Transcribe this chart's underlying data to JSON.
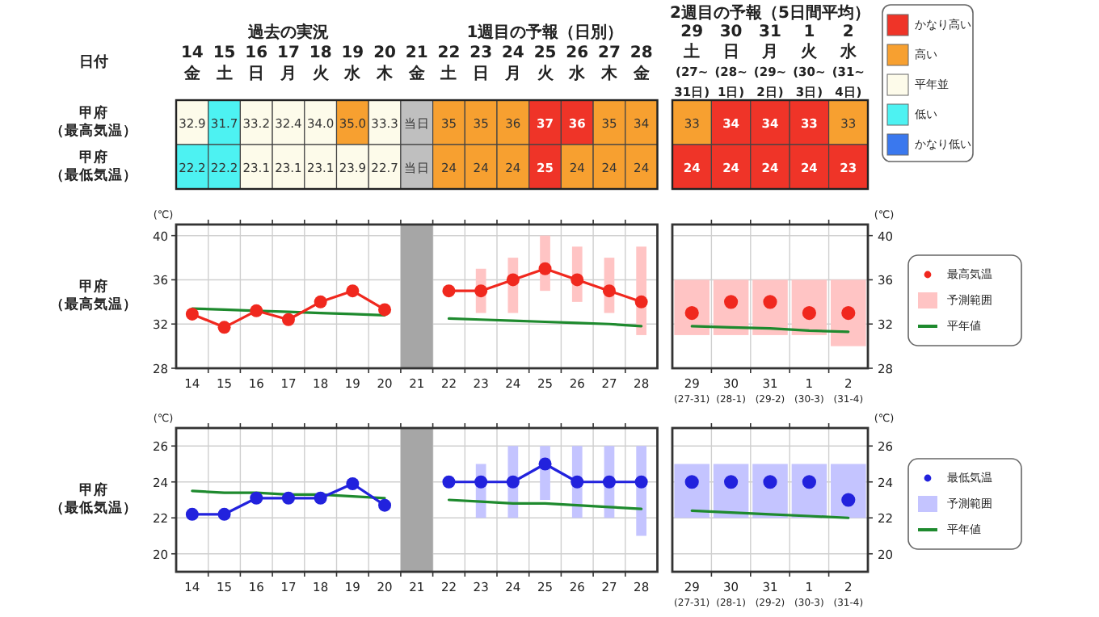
{
  "chart_data": [
    {
      "type": "heatmap",
      "xlabel": "日付",
      "annotations": [
        "過去の実況",
        "1週目の予報（日別）",
        "2週目の予報（5日間平均）"
      ],
      "categories": [
        "14\n金",
        "15\n土",
        "16\n日",
        "17\n月",
        "18\n火",
        "19\n水",
        "20\n木",
        "21\n金",
        "22\n土",
        "23\n日",
        "24\n月",
        "25\n火",
        "26\n水",
        "27\n木",
        "28\n金",
        "29\n土\n(27~\n31日)",
        "30\n日\n(28~\n1日)",
        "31\n月\n(29~\n2日)",
        "1\n火\n(30~\n3日)",
        "2\n水\n(31~\n4日)"
      ],
      "y_categories": [
        "甲府（最高気温）",
        "甲府（最低気温）"
      ],
      "cells": [
        [
          32.9,
          31.7,
          33.2,
          32.4,
          34.0,
          35.0,
          33.3,
          null,
          35,
          35,
          36,
          37,
          36,
          35,
          34,
          33,
          34,
          34,
          33,
          33
        ],
        [
          22.2,
          22.2,
          23.1,
          23.1,
          23.1,
          23.9,
          22.7,
          null,
          24,
          24,
          24,
          25,
          24,
          24,
          24,
          24,
          24,
          24,
          24,
          23
        ]
      ],
      "cell_labels": [
        [
          "32.9",
          "31.7",
          "33.2",
          "32.4",
          "34.0",
          "35.0",
          "33.3",
          "当日",
          "35",
          "35",
          "36",
          "37",
          "36",
          "35",
          "34",
          "33",
          "34",
          "34",
          "33",
          "33"
        ],
        [
          "22.2",
          "22.2",
          "23.1",
          "23.1",
          "23.1",
          "23.9",
          "22.7",
          "当日",
          "24",
          "24",
          "24",
          "25",
          "24",
          "24",
          "24",
          "24",
          "24",
          "24",
          "24",
          "23"
        ]
      ],
      "colors": [
        [
          "#fdfbea",
          "#4df2f2",
          "#fdfbea",
          "#fdfbea",
          "#fdfbea",
          "#f7a030",
          "#fdfbea",
          "#bfbfbf",
          "#f7a030",
          "#f7a030",
          "#f7a030",
          "#ef3428",
          "#ef3428",
          "#f7a030",
          "#f7a030",
          "#f7a030",
          "#ef3428",
          "#ef3428",
          "#ef3428",
          "#f7a030"
        ],
        [
          "#4df2f2",
          "#4df2f2",
          "#fdfbea",
          "#fdfbea",
          "#fdfbea",
          "#fdfbea",
          "#fdfbea",
          "#bfbfbf",
          "#f7a030",
          "#f7a030",
          "#f7a030",
          "#ef3428",
          "#f7a030",
          "#f7a030",
          "#f7a030",
          "#ef3428",
          "#ef3428",
          "#ef3428",
          "#ef3428",
          "#ef3428"
        ]
      ]
    },
    {
      "type": "other",
      "categories": [
        "かなり高い",
        "高い",
        "平年並",
        "低い",
        "かなり低い"
      ],
      "colors": [
        "#ef3428",
        "#f7a030",
        "#fdfbea",
        "#4df2f2",
        "#3a78ee"
      ]
    },
    {
      "type": "line",
      "categories": [
        "14",
        "15",
        "16",
        "17",
        "18",
        "19",
        "20",
        "21",
        "22",
        "23",
        "24",
        "25",
        "26",
        "27",
        "28"
      ],
      "ylabel": "(℃)",
      "annotations": [
        "甲府（最高気温）"
      ],
      "ylim": [
        28,
        41
      ],
      "yticks": [
        28,
        32,
        36,
        40
      ],
      "grid": true,
      "bands": [
        {
          "axis": "x",
          "from": "21",
          "to": "21",
          "color": "#a6a6a6"
        }
      ],
      "series": [
        {
          "type": "bar",
          "color": "#ffc4c4",
          "base": [
            null,
            null,
            null,
            null,
            null,
            null,
            null,
            null,
            null,
            33,
            33,
            35,
            34,
            33,
            31
          ],
          "values": [
            null,
            null,
            null,
            null,
            null,
            null,
            null,
            null,
            null,
            4,
            5,
            5,
            5,
            5,
            8
          ]
        },
        {
          "type": "line",
          "color": "#1e8a2e",
          "values": [
            33.4,
            33.3,
            33.2,
            33.1,
            33.0,
            32.9,
            32.8,
            null,
            32.5,
            32.4,
            32.3,
            32.2,
            32.1,
            32.0,
            31.8
          ]
        },
        {
          "type": "line",
          "color": "#f0281e",
          "marker": "circle",
          "values": [
            32.9,
            31.7,
            33.2,
            32.4,
            34.0,
            35.0,
            33.3,
            null,
            35,
            35,
            36,
            37,
            36,
            35,
            34
          ]
        }
      ]
    },
    {
      "type": "line",
      "categories": [
        "29\n(27-31)",
        "30\n(28-1)",
        "31\n(29-2)",
        "1\n(30-3)",
        "2\n(31-4)"
      ],
      "y2label": "(℃)",
      "y2lim": [
        28,
        41
      ],
      "y2ticks": [
        28,
        32,
        36,
        40
      ],
      "grid": true,
      "legend": "right",
      "series": [
        {
          "type": "scatter",
          "name": "最高気温",
          "axis": "y2",
          "color": "#f0281e",
          "values": [
            33,
            34,
            34,
            33,
            33
          ]
        },
        {
          "type": "bar",
          "name": "予測範囲",
          "axis": "y2",
          "color": "#ffc4c4",
          "base": [
            31,
            31,
            31,
            31,
            30
          ],
          "values": [
            5,
            5,
            5,
            5,
            6
          ]
        },
        {
          "type": "line",
          "name": "平年値",
          "axis": "y2",
          "color": "#1e8a2e",
          "values": [
            31.8,
            31.7,
            31.6,
            31.4,
            31.3
          ]
        }
      ]
    },
    {
      "type": "line",
      "categories": [
        "14",
        "15",
        "16",
        "17",
        "18",
        "19",
        "20",
        "21",
        "22",
        "23",
        "24",
        "25",
        "26",
        "27",
        "28"
      ],
      "ylabel": "(℃)",
      "annotations": [
        "甲府（最低気温）"
      ],
      "ylim": [
        19,
        27
      ],
      "yticks": [
        20,
        22,
        24,
        26
      ],
      "grid": true,
      "bands": [
        {
          "axis": "x",
          "from": "21",
          "to": "21",
          "color": "#a6a6a6"
        }
      ],
      "series": [
        {
          "type": "bar",
          "color": "#c4c4ff",
          "base": [
            null,
            null,
            null,
            null,
            null,
            null,
            null,
            null,
            null,
            22,
            22,
            23,
            22,
            22,
            21
          ],
          "values": [
            null,
            null,
            null,
            null,
            null,
            null,
            null,
            null,
            null,
            3,
            4,
            3,
            4,
            4,
            5
          ]
        },
        {
          "type": "line",
          "color": "#1e8a2e",
          "values": [
            23.5,
            23.4,
            23.4,
            23.3,
            23.3,
            23.2,
            23.1,
            null,
            23.0,
            22.9,
            22.8,
            22.8,
            22.7,
            22.6,
            22.5
          ]
        },
        {
          "type": "line",
          "color": "#2222dd",
          "marker": "circle",
          "values": [
            22.2,
            22.2,
            23.1,
            23.1,
            23.1,
            23.9,
            22.7,
            null,
            24,
            24,
            24,
            25,
            24,
            24,
            24
          ]
        }
      ]
    },
    {
      "type": "line",
      "categories": [
        "29\n(27-31)",
        "30\n(28-1)",
        "31\n(29-2)",
        "1\n(30-3)",
        "2\n(31-4)"
      ],
      "y2label": "(℃)",
      "y2lim": [
        19,
        27
      ],
      "y2ticks": [
        20,
        22,
        24,
        26
      ],
      "grid": true,
      "legend": "right",
      "series": [
        {
          "type": "scatter",
          "name": "最低気温",
          "axis": "y2",
          "color": "#2222dd",
          "values": [
            24,
            24,
            24,
            24,
            23
          ]
        },
        {
          "type": "bar",
          "name": "予測範囲",
          "axis": "y2",
          "color": "#c4c4ff",
          "base": [
            22,
            22,
            22,
            22,
            22
          ],
          "values": [
            3,
            3,
            3,
            3,
            3
          ]
        },
        {
          "type": "line",
          "name": "平年値",
          "axis": "y2",
          "color": "#1e8a2e",
          "values": [
            22.4,
            22.3,
            22.2,
            22.1,
            22.0
          ]
        }
      ]
    }
  ]
}
